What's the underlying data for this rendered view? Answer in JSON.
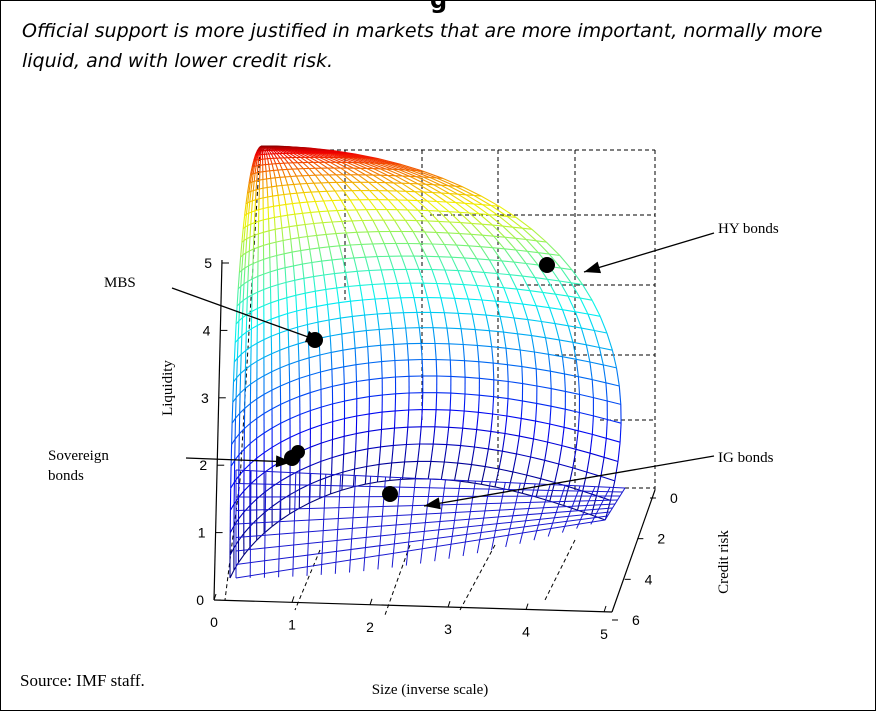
{
  "page": {
    "title_fragment": "g",
    "caption": "Official support is more justified in markets that are more important, normally more liquid, and with lower credit risk.",
    "source": "Source: IMF staff."
  },
  "chart_data": {
    "type": "scatter",
    "variant": "3d-surface",
    "title": "",
    "xlabel": "Size (inverse scale)",
    "ylabel": "Liquidity",
    "zlabel": "Credit risk",
    "x_ticks": [
      "0",
      "1",
      "2",
      "3",
      "4",
      "5"
    ],
    "y_ticks": [
      "0",
      "1",
      "2",
      "3",
      "4",
      "5"
    ],
    "z_ticks": [
      "0",
      "2",
      "4",
      "6"
    ],
    "xlim": [
      0,
      5
    ],
    "ylim": [
      0,
      5.5
    ],
    "zlim": [
      0,
      6
    ],
    "surface": "quarter-sphere mesh colored by height (jet colormap: blue low to dark red high)",
    "colors": {
      "low": "#1010c8",
      "mid": "#00e0e0",
      "high": "#8b0000"
    },
    "annotations": [
      {
        "label": "HY bonds",
        "x": 4.2,
        "y": 5.0,
        "z": 0
      },
      {
        "label": "MBS",
        "x": 1.2,
        "y": 4.0,
        "z": 1
      },
      {
        "label": "Sovereign bonds",
        "x": 0.8,
        "y": 2.0,
        "z": 1
      },
      {
        "label": "IG bonds",
        "x": 2.3,
        "y": 1.6,
        "z": 1
      }
    ]
  }
}
